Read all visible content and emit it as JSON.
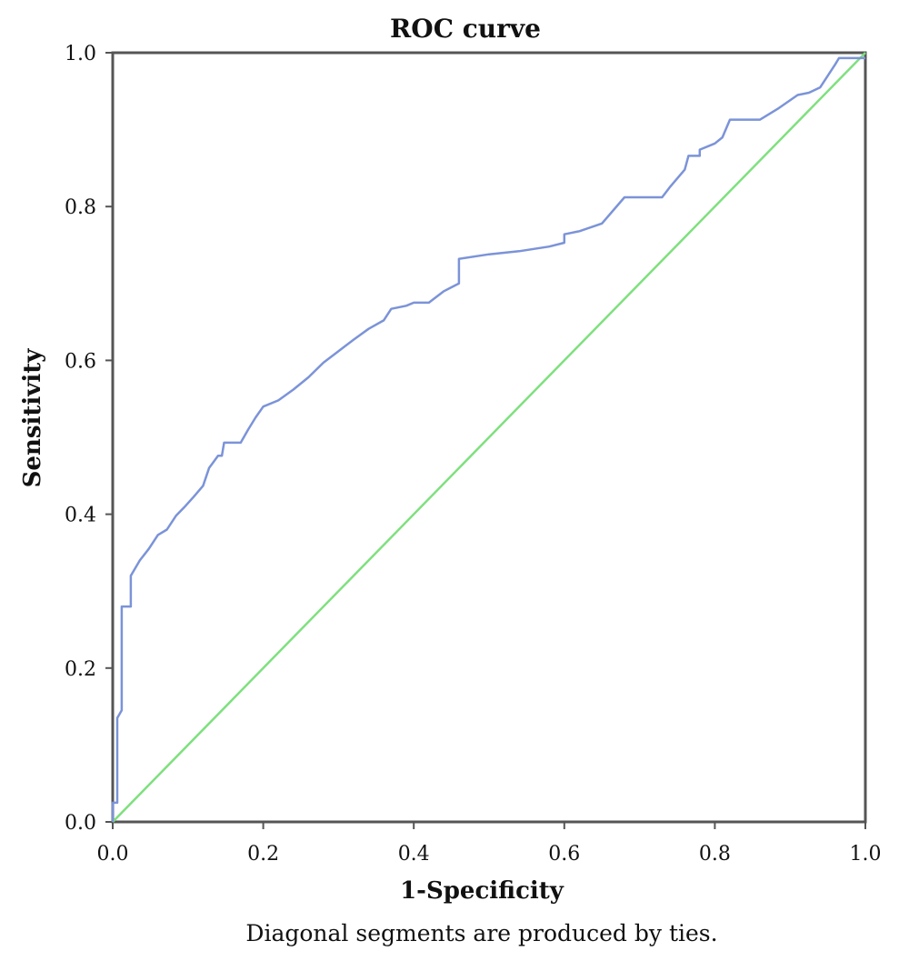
{
  "chart_data": {
    "type": "line",
    "title": "ROC curve",
    "xlabel": "1-Specificity",
    "ylabel": "Sensitivity",
    "footnote": "Diagonal segments are produced by ties.",
    "xlim": [
      0,
      1
    ],
    "ylim": [
      0,
      1
    ],
    "x_ticks": [
      "0.0",
      "0.2",
      "0.4",
      "0.6",
      "0.8",
      "1.0"
    ],
    "y_ticks": [
      "0.0",
      "0.2",
      "0.4",
      "0.6",
      "0.8",
      "1.0"
    ],
    "grid": false,
    "legend": "none",
    "colors": {
      "roc": "#7b93d8",
      "reference": "#7ee07e",
      "frame": "#555555"
    },
    "series": [
      {
        "id": "roc",
        "x": [
          0,
          0,
          0.006,
          0.006,
          0.012,
          0.012,
          0.024,
          0.024,
          0.036,
          0.048,
          0.06,
          0.072,
          0.084,
          0.096,
          0.108,
          0.12,
          0.128,
          0.14,
          0.145,
          0.148,
          0.16,
          0.17,
          0.18,
          0.19,
          0.2,
          0.22,
          0.24,
          0.26,
          0.28,
          0.3,
          0.32,
          0.34,
          0.36,
          0.37,
          0.39,
          0.4,
          0.41,
          0.42,
          0.44,
          0.45,
          0.46,
          0.46,
          0.5,
          0.54,
          0.58,
          0.6,
          0.6,
          0.62,
          0.65,
          0.68,
          0.73,
          0.74,
          0.76,
          0.765,
          0.78,
          0.78,
          0.8,
          0.81,
          0.82,
          0.86,
          0.885,
          0.91,
          0.925,
          0.94,
          0.96,
          0.965,
          1.0
        ],
        "y": [
          0,
          0.025,
          0.025,
          0.135,
          0.145,
          0.28,
          0.28,
          0.32,
          0.34,
          0.355,
          0.373,
          0.38,
          0.398,
          0.41,
          0.423,
          0.437,
          0.46,
          0.476,
          0.476,
          0.493,
          0.493,
          0.493,
          0.51,
          0.526,
          0.54,
          0.548,
          0.562,
          0.578,
          0.597,
          0.612,
          0.627,
          0.641,
          0.652,
          0.667,
          0.671,
          0.675,
          0.675,
          0.675,
          0.69,
          0.695,
          0.7,
          0.732,
          0.738,
          0.742,
          0.748,
          0.753,
          0.764,
          0.768,
          0.778,
          0.812,
          0.812,
          0.825,
          0.848,
          0.866,
          0.866,
          0.874,
          0.882,
          0.89,
          0.913,
          0.913,
          0.928,
          0.945,
          0.948,
          0.955,
          0.985,
          0.993,
          0.993
        ]
      },
      {
        "id": "reference",
        "x": [
          0,
          1
        ],
        "y": [
          0,
          1
        ]
      }
    ]
  }
}
